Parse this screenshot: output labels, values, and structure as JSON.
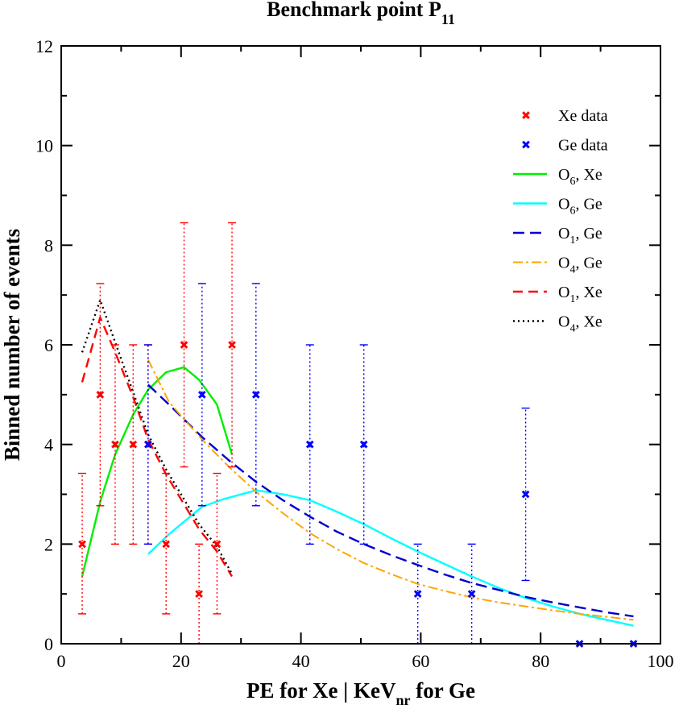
{
  "chart_data": {
    "type": "scatter",
    "title": {
      "main": "Benchmark point P",
      "sub": "11"
    },
    "xlabel": {
      "pre": "PE for Xe | KeV",
      "sub": "nr",
      "post": " for Ge"
    },
    "ylabel": "Binned number of events",
    "xlim": [
      0,
      100
    ],
    "ylim": [
      0,
      12
    ],
    "xticks": [
      0,
      20,
      40,
      60,
      80,
      100
    ],
    "yticks": [
      0,
      2,
      4,
      6,
      8,
      10,
      12
    ],
    "xtick_labels": [
      "0",
      "20",
      "40",
      "60",
      "80",
      "100"
    ],
    "ytick_labels": [
      "0",
      "2",
      "4",
      "6",
      "8",
      "10",
      "12"
    ],
    "data_series": [
      {
        "name": "Xe data",
        "color": "#ff0000",
        "points": [
          {
            "x": 3.5,
            "y": 2,
            "lo": 0.6,
            "hi": 3.42
          },
          {
            "x": 6.5,
            "y": 5,
            "lo": 2.77,
            "hi": 7.23
          },
          {
            "x": 9.0,
            "y": 4,
            "lo": 2.0,
            "hi": 6.0
          },
          {
            "x": 12.0,
            "y": 4,
            "lo": 2.0,
            "hi": 6.0
          },
          {
            "x": 14.5,
            "y": 4,
            "lo": 2.0,
            "hi": 6.0
          },
          {
            "x": 17.5,
            "y": 2,
            "lo": 0.6,
            "hi": 3.42
          },
          {
            "x": 20.5,
            "y": 6,
            "lo": 3.55,
            "hi": 8.45
          },
          {
            "x": 23.0,
            "y": 1,
            "lo": 0.0,
            "hi": 2.0
          },
          {
            "x": 26.0,
            "y": 2,
            "lo": 0.6,
            "hi": 3.42
          },
          {
            "x": 28.5,
            "y": 6,
            "lo": 3.55,
            "hi": 8.45
          }
        ]
      },
      {
        "name": "Ge data",
        "color": "#0000ff",
        "points": [
          {
            "x": 14.5,
            "y": 4,
            "lo": 2.0,
            "hi": 6.0
          },
          {
            "x": 23.5,
            "y": 5,
            "lo": 2.77,
            "hi": 7.23
          },
          {
            "x": 32.5,
            "y": 5,
            "lo": 2.77,
            "hi": 7.23
          },
          {
            "x": 41.5,
            "y": 4,
            "lo": 2.0,
            "hi": 6.0
          },
          {
            "x": 50.5,
            "y": 4,
            "lo": 2.0,
            "hi": 6.0
          },
          {
            "x": 59.5,
            "y": 1,
            "lo": 0.0,
            "hi": 2.0
          },
          {
            "x": 68.5,
            "y": 1,
            "lo": 0.0,
            "hi": 2.0
          },
          {
            "x": 77.5,
            "y": 3,
            "lo": 1.27,
            "hi": 4.73
          },
          {
            "x": 86.5,
            "y": 0,
            "lo": 0,
            "hi": 0
          },
          {
            "x": 95.5,
            "y": 0,
            "lo": 0,
            "hi": 0
          }
        ]
      }
    ],
    "curves": [
      {
        "name": "O6, Xe",
        "op": "O",
        "sub": "6",
        "target": ", Xe",
        "color": "#00ee00",
        "dash": "",
        "width": 2.4,
        "x": [
          3.5,
          6.5,
          9,
          12,
          14.5,
          17.5,
          20.5,
          23,
          26,
          28.5
        ],
        "y": [
          1.35,
          2.85,
          3.8,
          4.6,
          5.1,
          5.45,
          5.55,
          5.3,
          4.8,
          3.8
        ]
      },
      {
        "name": "O6, Ge",
        "op": "O",
        "sub": "6",
        "target": ", Ge",
        "color": "#00ffff",
        "dash": "",
        "width": 2.4,
        "x": [
          14.5,
          18,
          23.5,
          27,
          32.5,
          37,
          41.5,
          46,
          50.5,
          55,
          59.5,
          64,
          68.5,
          73,
          77.5,
          82,
          86.5,
          91,
          95.5
        ],
        "y": [
          1.8,
          2.2,
          2.75,
          2.9,
          3.08,
          3.0,
          2.88,
          2.65,
          2.4,
          2.12,
          1.85,
          1.6,
          1.35,
          1.12,
          0.92,
          0.75,
          0.6,
          0.48,
          0.36
        ]
      },
      {
        "name": "O1, Ge",
        "op": "O",
        "sub": "1",
        "target": ", Ge",
        "color": "#0000cc",
        "dash": "14,7",
        "width": 2.4,
        "x": [
          14.5,
          18,
          23.5,
          28,
          32.5,
          37,
          41.5,
          46,
          50.5,
          55,
          59.5,
          64,
          68.5,
          73,
          77.5,
          82,
          86.5,
          91,
          95.5
        ],
        "y": [
          5.2,
          4.8,
          4.15,
          3.68,
          3.25,
          2.88,
          2.55,
          2.25,
          2.0,
          1.78,
          1.58,
          1.39,
          1.22,
          1.08,
          0.94,
          0.83,
          0.73,
          0.63,
          0.55
        ]
      },
      {
        "name": "O4, Ge",
        "op": "O",
        "sub": "4",
        "target": ", Ge",
        "color": "#ffa500",
        "dash": "12,4,3,4",
        "width": 2.0,
        "x": [
          14.5,
          18,
          23.5,
          28,
          32.5,
          37,
          41.5,
          46,
          50.5,
          55,
          59.5,
          64,
          68.5,
          73,
          77.5,
          82,
          86.5,
          91,
          95.5
        ],
        "y": [
          5.7,
          4.85,
          4.1,
          3.55,
          3.05,
          2.62,
          2.22,
          1.9,
          1.62,
          1.4,
          1.2,
          1.06,
          0.93,
          0.83,
          0.75,
          0.67,
          0.6,
          0.54,
          0.48
        ]
      },
      {
        "name": "O1, Xe",
        "op": "O",
        "sub": "1",
        "target": ", Xe",
        "color": "#ff0000",
        "dash": "12,7",
        "width": 2.4,
        "x": [
          3.5,
          6.5,
          9,
          12,
          14.5,
          17.5,
          20.5,
          23,
          26,
          28.5
        ],
        "y": [
          5.25,
          6.55,
          5.85,
          4.95,
          4.1,
          3.4,
          2.8,
          2.3,
          1.85,
          1.35
        ]
      },
      {
        "name": "O4, Xe",
        "op": "O",
        "sub": "4",
        "target": ", Xe",
        "color": "#000000",
        "dash": "2,4",
        "width": 2.4,
        "x": [
          3.5,
          6.5,
          9,
          12,
          14.5,
          17.5,
          20.5,
          23,
          26,
          28.5
        ],
        "y": [
          5.85,
          6.9,
          6.05,
          5.05,
          4.2,
          3.5,
          2.9,
          2.4,
          1.95,
          1.4
        ]
      }
    ],
    "legend": {
      "position": "top-right",
      "marker_entries": [
        {
          "label": "Xe data",
          "color": "#ff0000"
        },
        {
          "label": "Ge data",
          "color": "#0000ff"
        }
      ]
    }
  }
}
